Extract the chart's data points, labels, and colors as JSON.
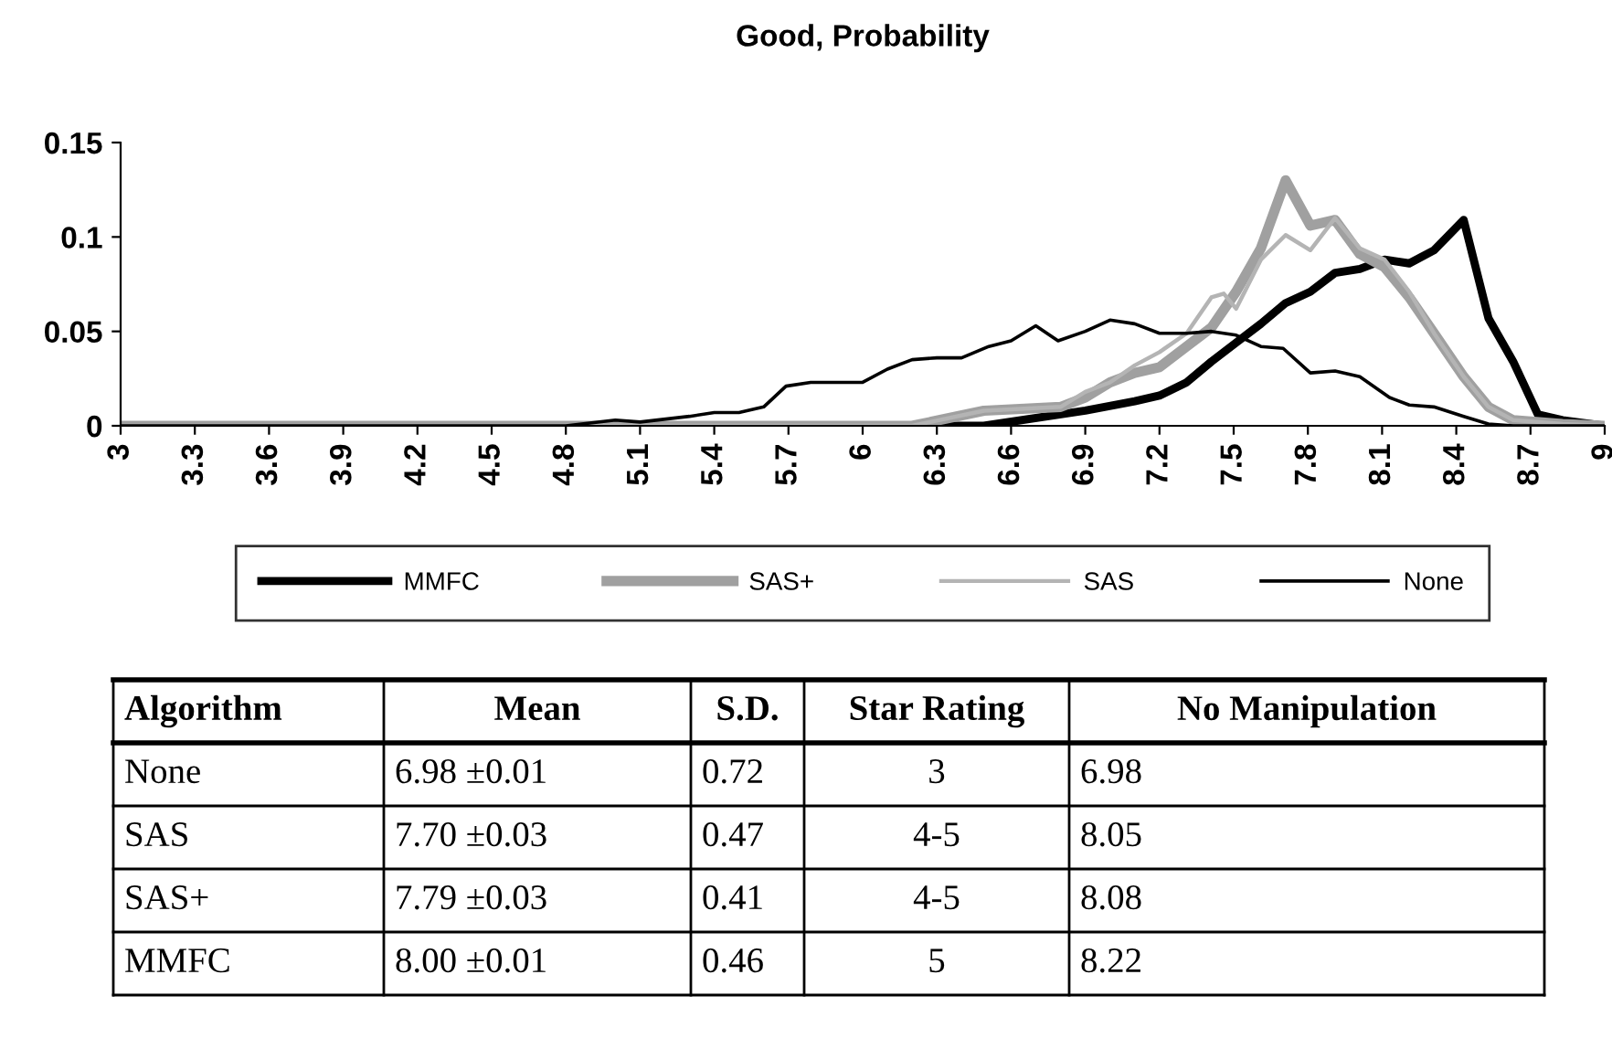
{
  "chart_data": {
    "type": "line",
    "title": "Good, Probability",
    "series": [
      {
        "name": "MMFC",
        "color": "#000000",
        "x": [
          3,
          6.49,
          6.9,
          7.1,
          7.2,
          7.31,
          7.41,
          7.51,
          7.61,
          7.71,
          7.81,
          7.91,
          8.01,
          8.11,
          8.21,
          8.31,
          8.43,
          8.53,
          8.63,
          8.73,
          8.83,
          9
        ],
        "values": [
          0,
          0,
          0.008,
          0.013,
          0.016,
          0.023,
          0.034,
          0.044,
          0.054,
          0.065,
          0.071,
          0.081,
          0.083,
          0.088,
          0.086,
          0.093,
          0.109,
          0.057,
          0.034,
          0.006,
          0.003,
          0
        ]
      },
      {
        "name": "SAS+",
        "color": "#a0a0a0",
        "x": [
          3,
          6.2,
          6.49,
          6.8,
          6.9,
          7.0,
          7.1,
          7.2,
          7.31,
          7.41,
          7.51,
          7.61,
          7.71,
          7.81,
          7.91,
          8.01,
          8.11,
          8.21,
          8.31,
          8.43,
          8.53,
          8.63,
          8.83,
          9
        ],
        "values": [
          0,
          0,
          0.008,
          0.01,
          0.015,
          0.023,
          0.028,
          0.031,
          0.042,
          0.052,
          0.071,
          0.094,
          0.13,
          0.106,
          0.109,
          0.091,
          0.084,
          0.068,
          0.049,
          0.026,
          0.01,
          0.003,
          0.001,
          0
        ]
      },
      {
        "name": "SAS",
        "color": "#b4b4b4",
        "x": [
          3,
          6.2,
          6.49,
          6.8,
          6.9,
          7.0,
          7.1,
          7.2,
          7.31,
          7.41,
          7.46,
          7.51,
          7.61,
          7.71,
          7.81,
          7.91,
          8.01,
          8.11,
          8.21,
          8.31,
          8.43,
          8.53,
          8.63,
          8.83,
          9
        ],
        "values": [
          0,
          0,
          0.008,
          0.01,
          0.018,
          0.023,
          0.032,
          0.039,
          0.049,
          0.068,
          0.07,
          0.062,
          0.088,
          0.101,
          0.093,
          0.11,
          0.094,
          0.088,
          0.071,
          0.049,
          0.026,
          0.01,
          0.003,
          0.001,
          0
        ]
      },
      {
        "name": "None",
        "color": "#000000",
        "x": [
          3,
          4.8,
          5.0,
          5.1,
          5.3,
          5.4,
          5.5,
          5.6,
          5.69,
          5.79,
          6.0,
          6.1,
          6.2,
          6.3,
          6.4,
          6.51,
          6.6,
          6.7,
          6.79,
          6.9,
          7.0,
          7.1,
          7.2,
          7.31,
          7.41,
          7.51,
          7.61,
          7.7,
          7.81,
          7.91,
          8.01,
          8.13,
          8.21,
          8.31,
          8.43,
          8.53,
          8.63,
          9
        ],
        "values": [
          0,
          0,
          0.003,
          0.002,
          0.005,
          0.007,
          0.007,
          0.01,
          0.021,
          0.023,
          0.023,
          0.03,
          0.035,
          0.036,
          0.036,
          0.042,
          0.045,
          0.053,
          0.045,
          0.05,
          0.056,
          0.054,
          0.049,
          0.049,
          0.05,
          0.048,
          0.042,
          0.041,
          0.028,
          0.029,
          0.026,
          0.015,
          0.011,
          0.01,
          0.005,
          0.001,
          0,
          0
        ]
      }
    ],
    "xlim": [
      3,
      9
    ],
    "xticks": [
      3,
      3.3,
      3.6,
      3.9,
      4.2,
      4.5,
      4.8,
      5.1,
      5.4,
      5.7,
      6,
      6.3,
      6.6,
      6.9,
      7.2,
      7.5,
      7.8,
      8.1,
      8.4,
      8.7,
      9
    ],
    "ylim": [
      0,
      0.15
    ],
    "yticks": [
      0,
      0.05,
      0.1,
      0.15
    ],
    "grid": false,
    "legend": "bottom",
    "marker": "none",
    "line_style": "solid",
    "annotations": [
      "Algorithm",
      "Mean",
      "S.D.",
      "Star Rating",
      "No Manipulation",
      "None",
      "6.98 ±0.01",
      "0.72",
      "3",
      "6.98",
      "SAS",
      "7.70 ±0.03",
      "0.47",
      "4-5",
      "8.05",
      "SAS+",
      "7.79 ±0.03",
      "0.41",
      "4-5",
      "8.08",
      "MMFC",
      "8.00 ±0.01",
      "0.46",
      "5",
      "8.22"
    ]
  }
}
